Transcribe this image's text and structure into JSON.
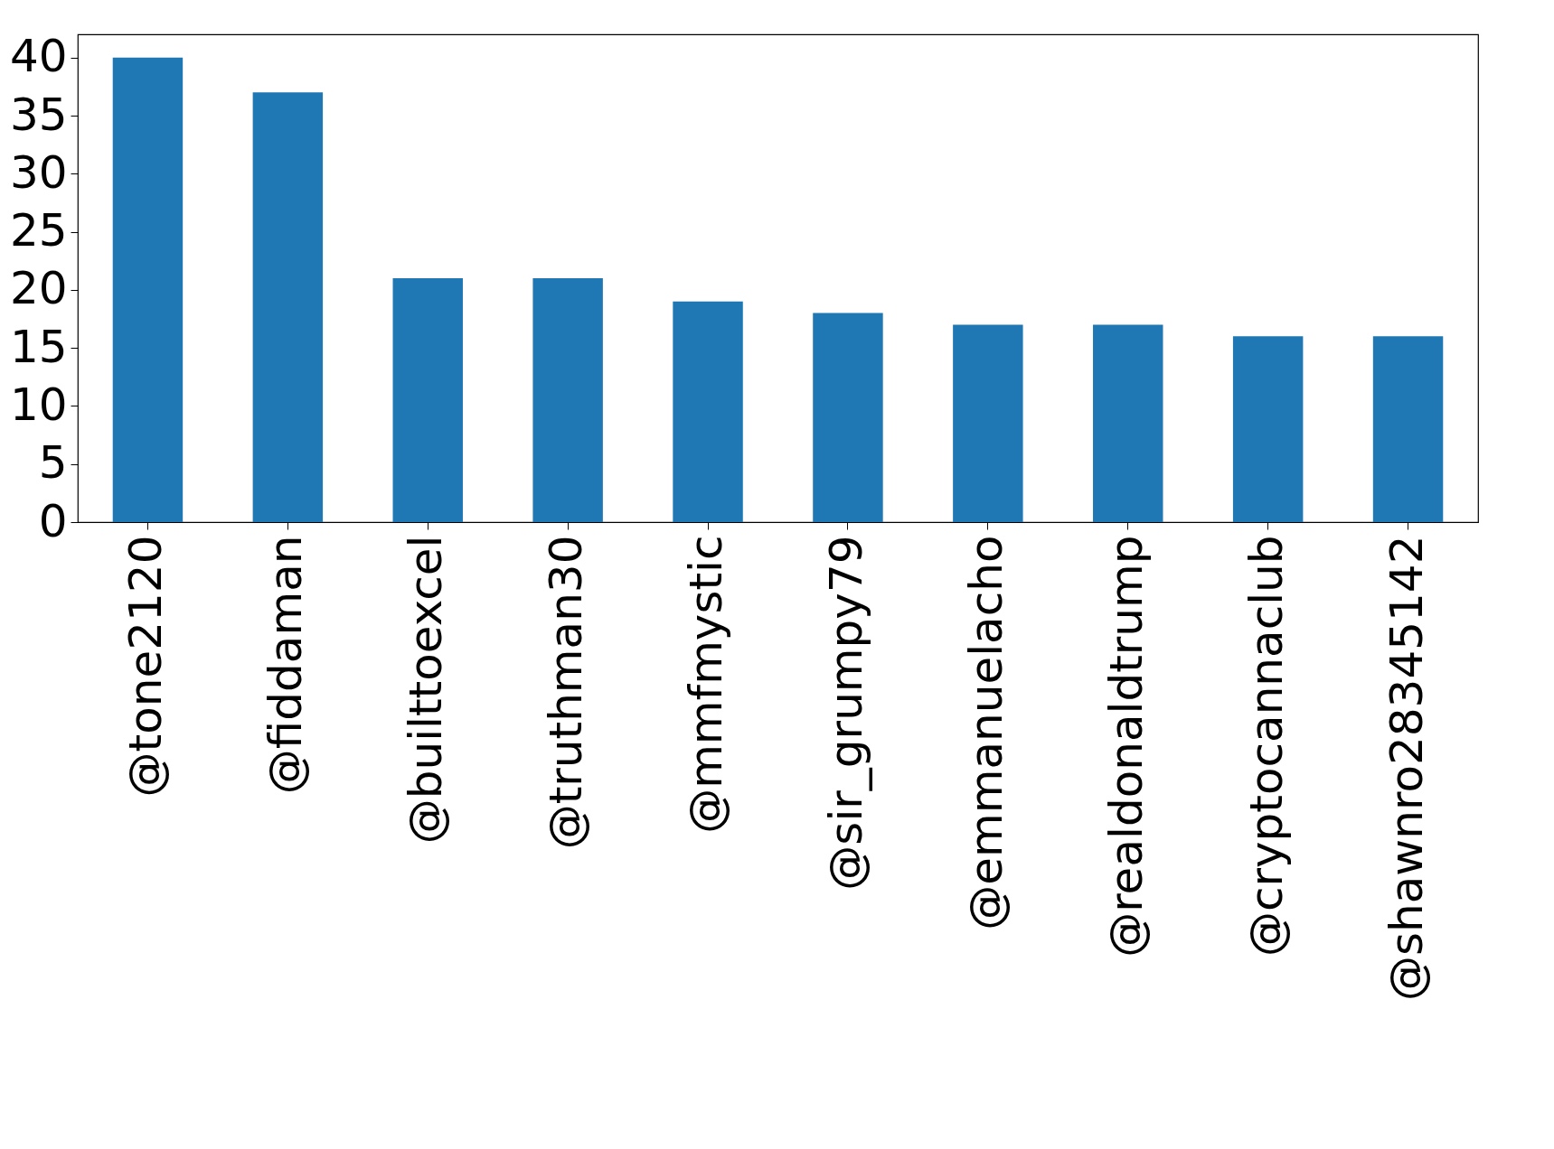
{
  "chart_data": {
    "type": "bar",
    "categories": [
      "@tone2120",
      "@fiddaman",
      "@builttoexcel",
      "@truthman30",
      "@mmfmystic",
      "@sir_grumpy79",
      "@emmanuelacho",
      "@realdonaldtrump",
      "@cryptocannaclub",
      "@shawnro28345142"
    ],
    "values": [
      40,
      37,
      21,
      21,
      19,
      18,
      17,
      17,
      16,
      16
    ],
    "color": "#1f77b4",
    "ylim": [
      0,
      42
    ],
    "yticks": [
      0,
      5,
      10,
      15,
      20,
      25,
      30,
      35,
      40
    ],
    "grid": false
  }
}
